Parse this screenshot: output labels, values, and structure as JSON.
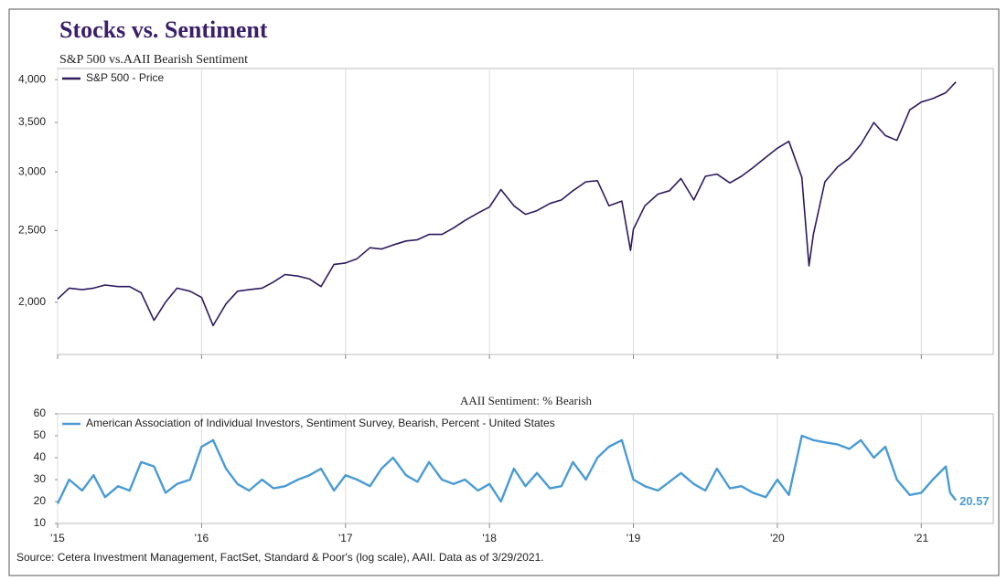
{
  "chart_data": [
    {
      "type": "line",
      "title": "Stocks vs. Sentiment",
      "subtitle": "S&P 500 vs.AAII Bearish Sentiment",
      "log_scale": true,
      "grid": true,
      "legend": "top-left",
      "xlim": [
        2015,
        2021.5
      ],
      "xticks": [
        2015,
        2016,
        2017,
        2018,
        2019,
        2020,
        2021
      ],
      "ylim": [
        1700,
        4140
      ],
      "yticks": [
        {
          "value": 2000,
          "label": "2,000"
        },
        {
          "value": 2500,
          "label": "2,500"
        },
        {
          "value": 3000,
          "label": "3,000"
        },
        {
          "value": 3500,
          "label": "3,500"
        },
        {
          "value": 4000,
          "label": "4,000"
        }
      ],
      "x": [
        2015,
        2015.08,
        2015.17,
        2015.25,
        2015.33,
        2015.42,
        2015.5,
        2015.58,
        2015.67,
        2015.75,
        2015.83,
        2015.92,
        2016,
        2016.08,
        2016.17,
        2016.25,
        2016.33,
        2016.42,
        2016.5,
        2016.58,
        2016.67,
        2016.75,
        2016.83,
        2016.92,
        2017,
        2017.08,
        2017.17,
        2017.25,
        2017.33,
        2017.42,
        2017.5,
        2017.58,
        2017.67,
        2017.75,
        2017.83,
        2017.92,
        2018,
        2018.08,
        2018.17,
        2018.25,
        2018.33,
        2018.42,
        2018.5,
        2018.58,
        2018.67,
        2018.75,
        2018.83,
        2018.92,
        2018.98,
        2019,
        2019.08,
        2019.17,
        2019.25,
        2019.33,
        2019.42,
        2019.5,
        2019.58,
        2019.67,
        2019.75,
        2019.83,
        2019.92,
        2020,
        2020.08,
        2020.17,
        2020.22,
        2020.25,
        2020.33,
        2020.42,
        2020.5,
        2020.58,
        2020.67,
        2020.75,
        2020.83,
        2020.92,
        2021,
        2021.08,
        2021.17,
        2021.24
      ],
      "series": [
        {
          "name": "S&P 500 - Price",
          "color": "#2e1a5e",
          "values": [
            2020,
            2090,
            2080,
            2090,
            2110,
            2100,
            2100,
            2060,
            1890,
            2000,
            2090,
            2070,
            2030,
            1860,
            1990,
            2070,
            2080,
            2090,
            2130,
            2180,
            2170,
            2150,
            2100,
            2250,
            2260,
            2290,
            2370,
            2360,
            2390,
            2420,
            2430,
            2470,
            2470,
            2520,
            2580,
            2640,
            2690,
            2840,
            2700,
            2630,
            2660,
            2720,
            2750,
            2830,
            2910,
            2920,
            2700,
            2740,
            2350,
            2510,
            2700,
            2800,
            2830,
            2940,
            2750,
            2960,
            2980,
            2900,
            2960,
            3040,
            3140,
            3230,
            3300,
            2950,
            2240,
            2470,
            2910,
            3050,
            3130,
            3270,
            3500,
            3360,
            3310,
            3640,
            3730,
            3770,
            3840,
            3970
          ]
        }
      ]
    },
    {
      "type": "line",
      "title": "AAII Sentiment:  % Bearish",
      "grid": true,
      "legend": "top-left",
      "label_last": true,
      "xlim": [
        2015,
        2021.5
      ],
      "xticks": [
        {
          "value": 2015,
          "label": "'15"
        },
        {
          "value": 2016,
          "label": "'16"
        },
        {
          "value": 2017,
          "label": "'17"
        },
        {
          "value": 2018,
          "label": "'18"
        },
        {
          "value": 2019,
          "label": "'19"
        },
        {
          "value": 2020,
          "label": "'20"
        },
        {
          "value": 2021,
          "label": "'21"
        }
      ],
      "ylim": [
        10,
        60
      ],
      "yticks": [
        10,
        20,
        30,
        40,
        50,
        60
      ],
      "x": [
        2015,
        2015.08,
        2015.17,
        2015.25,
        2015.33,
        2015.42,
        2015.5,
        2015.58,
        2015.67,
        2015.75,
        2015.83,
        2015.92,
        2016,
        2016.08,
        2016.17,
        2016.25,
        2016.33,
        2016.42,
        2016.5,
        2016.58,
        2016.67,
        2016.75,
        2016.83,
        2016.92,
        2017,
        2017.08,
        2017.17,
        2017.25,
        2017.33,
        2017.42,
        2017.5,
        2017.58,
        2017.67,
        2017.75,
        2017.83,
        2017.92,
        2018,
        2018.08,
        2018.17,
        2018.25,
        2018.33,
        2018.42,
        2018.5,
        2018.58,
        2018.67,
        2018.75,
        2018.83,
        2018.92,
        2019,
        2019.08,
        2019.17,
        2019.25,
        2019.33,
        2019.42,
        2019.5,
        2019.58,
        2019.67,
        2019.75,
        2019.83,
        2019.92,
        2020,
        2020.08,
        2020.17,
        2020.25,
        2020.33,
        2020.42,
        2020.5,
        2020.58,
        2020.67,
        2020.75,
        2020.83,
        2020.92,
        2021,
        2021.08,
        2021.17,
        2021.2,
        2021.24
      ],
      "series": [
        {
          "name": "American Association of Individual Investors, Sentiment Survey, Bearish, Percent - United States",
          "color": "#4a9bd4",
          "values": [
            19,
            30,
            25,
            32,
            22,
            27,
            25,
            38,
            36,
            24,
            28,
            30,
            45,
            48,
            35,
            28,
            25,
            30,
            26,
            27,
            30,
            32,
            35,
            25,
            32,
            30,
            27,
            35,
            40,
            32,
            29,
            38,
            30,
            28,
            30,
            25,
            28,
            20,
            35,
            27,
            33,
            26,
            27,
            38,
            30,
            40,
            45,
            48,
            30,
            27,
            25,
            29,
            33,
            28,
            25,
            35,
            26,
            27,
            24,
            22,
            30,
            23,
            50,
            48,
            47,
            46,
            44,
            48,
            40,
            45,
            30,
            23,
            24,
            30,
            36,
            24,
            20.57
          ]
        }
      ]
    }
  ],
  "source": "Source: Cetera Investment Management, FactSet, Standard & Poor's (log scale), AAII. Data as of 3/29/2021."
}
